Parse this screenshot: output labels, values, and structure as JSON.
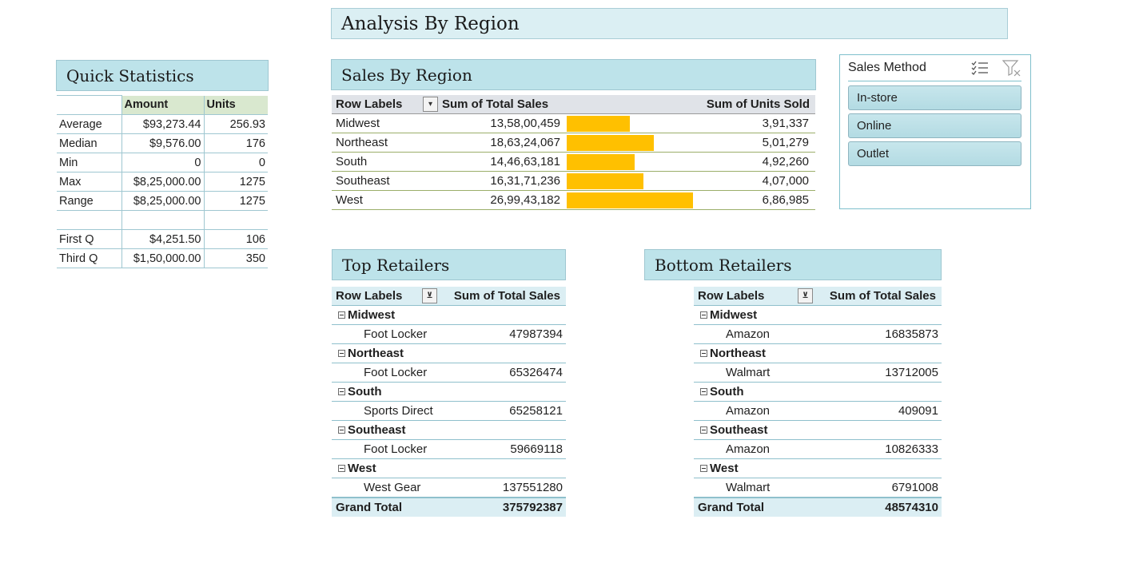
{
  "main_title": "Analysis By Region",
  "quick_stats": {
    "title": "Quick Statistics",
    "headers": [
      "",
      "Amount",
      "Units"
    ],
    "rows": [
      [
        "Average",
        "$93,273.44",
        "256.93"
      ],
      [
        "Median",
        "$9,576.00",
        "176"
      ],
      [
        "Min",
        "0",
        "0"
      ],
      [
        "Max",
        "$8,25,000.00",
        "1275"
      ],
      [
        "Range",
        "$8,25,000.00",
        "1275"
      ],
      [
        "",
        "",
        ""
      ],
      [
        "First Q",
        "$4,251.50",
        "106"
      ],
      [
        "Third Q",
        "$1,50,000.00",
        "350"
      ]
    ]
  },
  "sales_by_region": {
    "title": "Sales By Region",
    "col_row_labels": "Row Labels",
    "col_total_sales": "Sum of Total Sales",
    "col_units": "Sum of Units Sold",
    "bar_color": "#ffc000",
    "rows": [
      {
        "label": "Midwest",
        "sales": "13,58,00,459",
        "sales_value": 135800459,
        "units": "3,91,337"
      },
      {
        "label": "Northeast",
        "sales": "18,63,24,067",
        "sales_value": 186324067,
        "units": "5,01,279"
      },
      {
        "label": "South",
        "sales": "14,46,63,181",
        "sales_value": 144663181,
        "units": "4,92,260"
      },
      {
        "label": "Southeast",
        "sales": "16,31,71,236",
        "sales_value": 163171236,
        "units": "4,07,000"
      },
      {
        "label": "West",
        "sales": "26,99,43,182",
        "sales_value": 269943182,
        "units": "6,86,985"
      }
    ]
  },
  "slicer": {
    "title": "Sales Method",
    "items": [
      "In-store",
      "Online",
      "Outlet"
    ],
    "multiselect_icon": "multi-select-icon",
    "clear_filter_icon": "clear-filter-icon"
  },
  "top_retailers": {
    "title": "Top Retailers",
    "col_row_labels": "Row Labels",
    "col_total_sales": "Sum of Total Sales",
    "groups": [
      {
        "region": "Midwest",
        "retailer": "Foot Locker",
        "value": "47987394"
      },
      {
        "region": "Northeast",
        "retailer": "Foot Locker",
        "value": "65326474"
      },
      {
        "region": "South",
        "retailer": "Sports Direct",
        "value": "65258121"
      },
      {
        "region": "Southeast",
        "retailer": "Foot Locker",
        "value": "59669118"
      },
      {
        "region": "West",
        "retailer": "West Gear",
        "value": "137551280"
      }
    ],
    "grand_total_label": "Grand Total",
    "grand_total": "375792387"
  },
  "bottom_retailers": {
    "title": "Bottom Retailers",
    "col_row_labels": "Row Labels",
    "col_total_sales": "Sum of Total Sales",
    "groups": [
      {
        "region": "Midwest",
        "retailer": "Amazon",
        "value": "16835873"
      },
      {
        "region": "Northeast",
        "retailer": "Walmart",
        "value": "13712005"
      },
      {
        "region": "South",
        "retailer": "Amazon",
        "value": "409091"
      },
      {
        "region": "Southeast",
        "retailer": "Amazon",
        "value": "10826333"
      },
      {
        "region": "West",
        "retailer": "Walmart",
        "value": "6791008"
      }
    ],
    "grand_total_label": "Grand Total",
    "grand_total": "48574310"
  }
}
